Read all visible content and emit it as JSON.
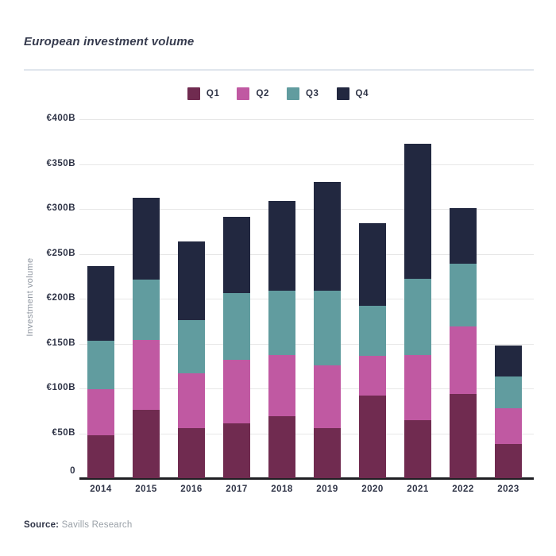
{
  "header": {
    "title": "European investment volume"
  },
  "y_axis": {
    "title": "Investment volume"
  },
  "footer": {
    "source_label": "Source:",
    "source_text": "Savills Research"
  },
  "colors": {
    "q1": "#702b50",
    "q2": "#c059a2",
    "q3": "#619c9f",
    "q4": "#222840",
    "gridline": "#e7e7e7",
    "axis_line": "#1f1f23",
    "tick_text": "#2e3346",
    "title_text": "#363b4e",
    "ylabel_text": "#9097a1",
    "rule": "#e0e6ed",
    "source_muted": "#9aa1a8"
  },
  "chart_data": {
    "type": "bar",
    "stacked": true,
    "title": "European investment volume",
    "xlabel": "",
    "ylabel": "Investment volume",
    "categories": [
      "2014",
      "2015",
      "2016",
      "2017",
      "2018",
      "2019",
      "2020",
      "2021",
      "2022",
      "2023"
    ],
    "series": [
      {
        "name": "Q1",
        "color": "#702b50",
        "values": [
          48,
          76,
          56,
          61,
          69,
          56,
          92,
          65,
          94,
          38
        ]
      },
      {
        "name": "Q2",
        "color": "#c059a2",
        "values": [
          51,
          78,
          61,
          71,
          68,
          70,
          44,
          72,
          75,
          40
        ]
      },
      {
        "name": "Q3",
        "color": "#619c9f",
        "values": [
          54,
          67,
          59,
          74,
          72,
          83,
          56,
          85,
          70,
          35
        ]
      },
      {
        "name": "Q4",
        "color": "#222840",
        "values": [
          83,
          91,
          88,
          85,
          100,
          121,
          92,
          151,
          62,
          35
        ]
      }
    ],
    "totals": [
      236,
      312,
      264,
      291,
      309,
      330,
      284,
      373,
      301,
      148
    ],
    "ylim": [
      0,
      400
    ],
    "y_ticks": [
      {
        "value": 400,
        "label": "€400B"
      },
      {
        "value": 350,
        "label": "€350B"
      },
      {
        "value": 300,
        "label": "€300B"
      },
      {
        "value": 250,
        "label": "€250B"
      },
      {
        "value": 200,
        "label": "€200B"
      },
      {
        "value": 150,
        "label": "€150B"
      },
      {
        "value": 100,
        "label": "€100B"
      },
      {
        "value": 50,
        "label": "€50B"
      },
      {
        "value": 0,
        "label": "0"
      }
    ],
    "grid": true,
    "legend_position": "top"
  }
}
